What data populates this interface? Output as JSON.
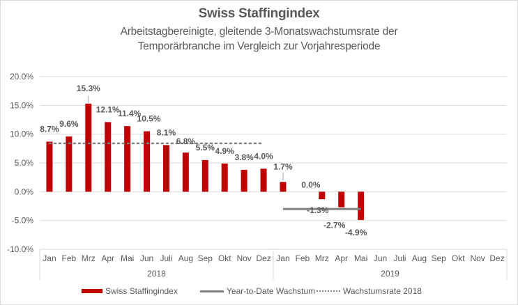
{
  "colors": {
    "bar": "#c00000",
    "ytd_line": "#808080",
    "rate_line": "#808080",
    "text": "#595959",
    "grid": "#d9d9d9"
  },
  "chart_data": {
    "type": "bar",
    "title": "Swiss Staffingindex",
    "subtitle_line1": "Arbeitstagbereinigte, gleitende 3-Monatswachstumsrate der",
    "subtitle_line2": "Temporärbranche im Vergleich zur Vorjahresperiode",
    "xlabel": "",
    "ylabel": "",
    "ylim": [
      -10,
      20
    ],
    "y_ticks": [
      20,
      15,
      10,
      5,
      0,
      -5,
      -10
    ],
    "y_tick_labels": [
      "20.0%",
      "15.0%",
      "10.0%",
      "5.0%",
      "0.0%",
      "-5.0%",
      "-10.0%"
    ],
    "grid": true,
    "legend_position": "bottom",
    "categories": [
      "Jan",
      "Feb",
      "Mrz",
      "Apr",
      "Mai",
      "Jun",
      "Juli",
      "Aug",
      "Sep",
      "Okt",
      "Nov",
      "Dez",
      "Jan",
      "Feb",
      "Mrz",
      "Apr",
      "Mai",
      "Jun",
      "Juli",
      "Aug",
      "Sep",
      "Okt",
      "Nov",
      "Dez"
    ],
    "groups": [
      {
        "label": "2018",
        "start": 0,
        "end": 11
      },
      {
        "label": "2019",
        "start": 12,
        "end": 23
      }
    ],
    "series": [
      {
        "name": "Swiss Staffingindex",
        "type": "bar",
        "values": [
          8.7,
          9.6,
          15.3,
          12.1,
          11.4,
          10.5,
          8.1,
          6.8,
          5.5,
          4.9,
          3.8,
          4.0,
          1.7,
          0.0,
          -1.3,
          -2.7,
          -4.9,
          null,
          null,
          null,
          null,
          null,
          null,
          null
        ],
        "labels": [
          "8.7%",
          "9.6%",
          "15.3%",
          "12.1%",
          "11.4%",
          "10.5%",
          "8.1%",
          "6.8%",
          "5.5%",
          "4.9%",
          "3.8%",
          "4.0%",
          "1.7%",
          "0.0%",
          "-1.3%",
          "-2.7%",
          "-4.9%",
          null,
          null,
          null,
          null,
          null,
          null,
          null
        ]
      },
      {
        "name": "Year-to-Date Wachstum",
        "type": "line",
        "values": [
          null,
          null,
          null,
          null,
          null,
          null,
          null,
          null,
          null,
          null,
          null,
          null,
          -3.0,
          -3.0,
          -3.0,
          -3.0,
          -3.0,
          null,
          null,
          null,
          null,
          null,
          null,
          null
        ]
      },
      {
        "name": "Wachstumsrate 2018",
        "type": "line-dotted",
        "values": [
          8.4,
          8.4,
          8.4,
          8.4,
          8.4,
          8.4,
          8.4,
          8.4,
          8.4,
          8.4,
          8.4,
          8.4,
          null,
          null,
          null,
          null,
          null,
          null,
          null,
          null,
          null,
          null,
          null,
          null
        ]
      }
    ]
  },
  "legend": {
    "items": [
      "Swiss Staffingindex",
      "Year-to-Date Wachstum",
      "Wachstumsrate 2018"
    ]
  }
}
